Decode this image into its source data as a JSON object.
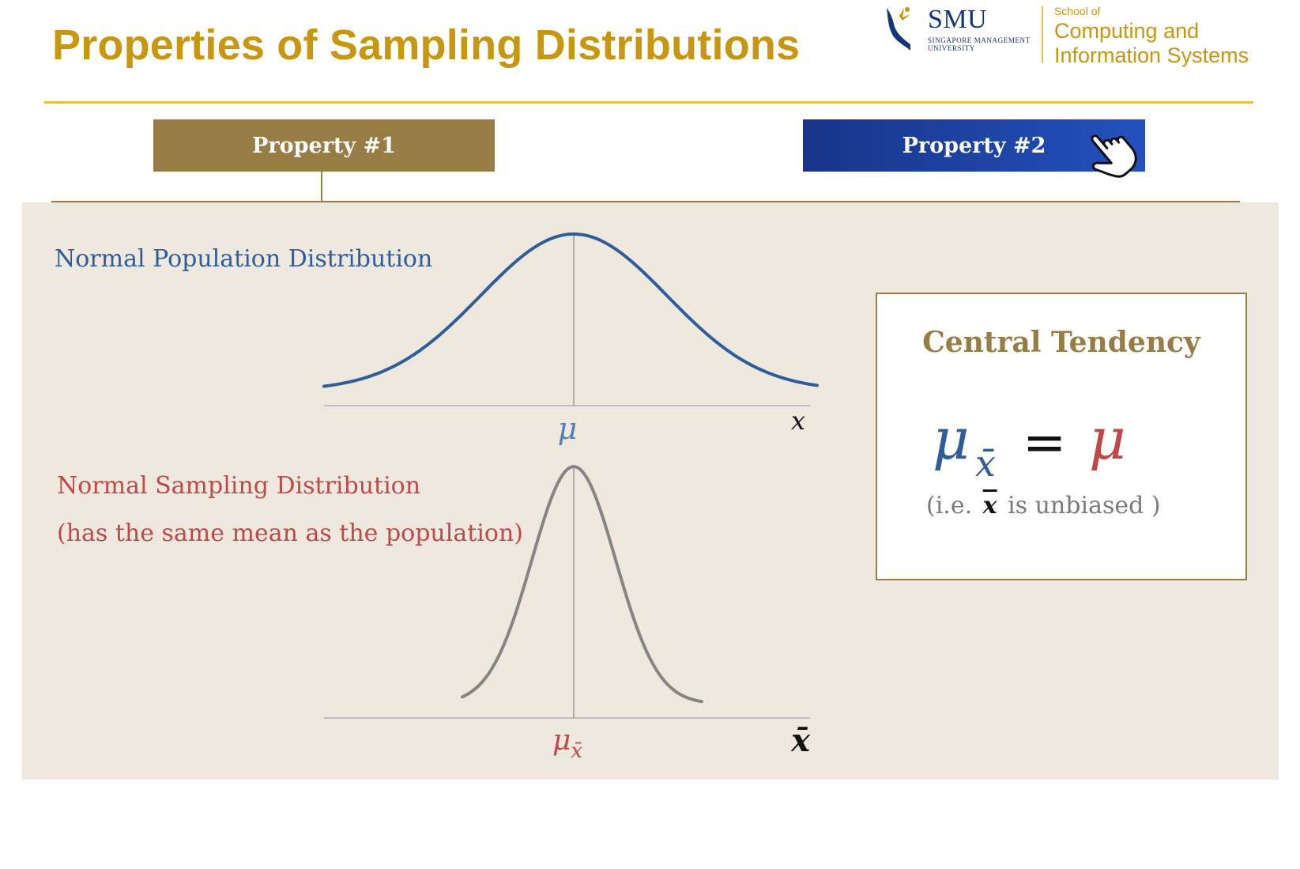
{
  "header": {
    "title": "Properties of Sampling Distributions",
    "logo": {
      "university_abbr": "SMU",
      "university_name": "SINGAPORE MANAGEMENT UNIVERSITY",
      "school_prefix": "School of",
      "school_name_line1": "Computing and",
      "school_name_line2": "Information Systems"
    }
  },
  "tabs": [
    {
      "label": "Property #1",
      "state": "selected",
      "color": "#977C43"
    },
    {
      "label": "Property #2",
      "state": "hover",
      "color": "#1E3F9E"
    }
  ],
  "diagram": {
    "population": {
      "label": "Normal Population Distribution",
      "center_label": "μ",
      "axis_label": "x",
      "color": "#2F5D9A"
    },
    "sampling": {
      "label": "Normal Sampling Distribution",
      "note": "(has the same mean as the population)",
      "center_label": "μ",
      "center_label_sub": "x̄",
      "axis_label": "x̄",
      "color": "#C04848",
      "curve_color": "#858585"
    }
  },
  "central_tendency": {
    "title": "Central Tendency",
    "formula_lhs": "μ",
    "formula_lhs_sub": "x̄",
    "formula_op": "=",
    "formula_rhs": "μ",
    "note_prefix": "(i.e.",
    "note_symbol": "x",
    "note_suffix": "is unbiased )"
  },
  "colors": {
    "title": "#C8960F",
    "accent_gold": "#977C43",
    "accent_blue": "#1E3F9E",
    "panel_bg": "#EEE8DE"
  }
}
